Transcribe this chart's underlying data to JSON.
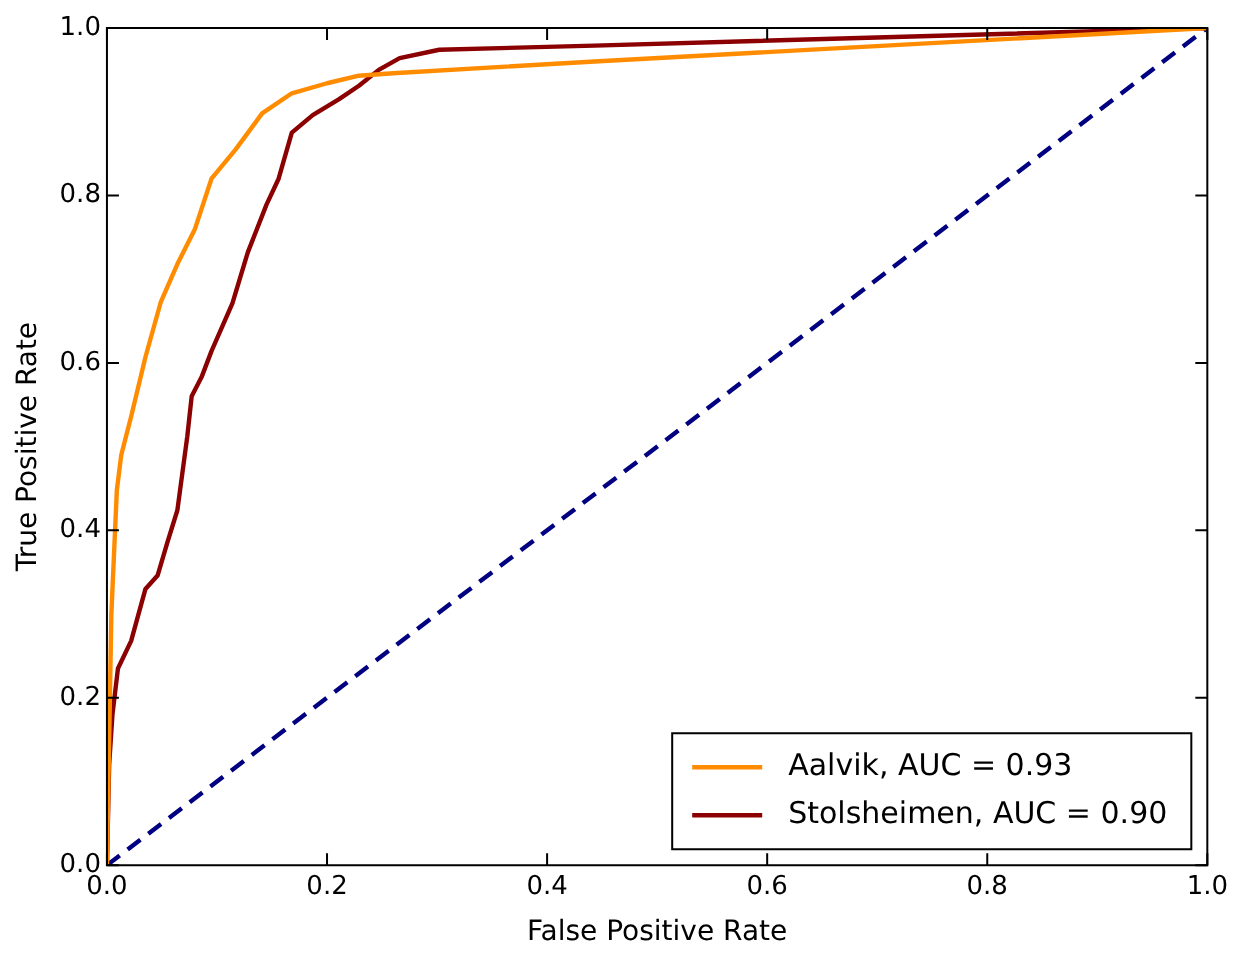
{
  "chart_data": {
    "type": "line",
    "xlabel": "False Positive Rate",
    "ylabel": "True Positive Rate",
    "xlim": [
      0,
      1
    ],
    "ylim": [
      0,
      1
    ],
    "xticks": [
      {
        "value": 0,
        "label": "0.0"
      },
      {
        "value": 0.2,
        "label": "0.2"
      },
      {
        "value": 0.4,
        "label": "0.4"
      },
      {
        "value": 0.6,
        "label": "0.6"
      },
      {
        "value": 0.8,
        "label": "0.8"
      },
      {
        "value": 1,
        "label": "1.0"
      }
    ],
    "yticks": [
      {
        "value": 0,
        "label": "0.0"
      },
      {
        "value": 0.2,
        "label": "0.2"
      },
      {
        "value": 0.4,
        "label": "0.4"
      },
      {
        "value": 0.6,
        "label": "0.6"
      },
      {
        "value": 0.8,
        "label": "0.8"
      },
      {
        "value": 1,
        "label": "1.0"
      }
    ],
    "grid": false,
    "legend": "bottom right",
    "marker": "none",
    "series": [
      {
        "name": "Aalvik, AUC = 0.93",
        "color": "#ff8c00",
        "line_style": "solid",
        "x": [
          0,
          0.004,
          0.009,
          0.013,
          0.022,
          0.035,
          0.049,
          0.064,
          0.08,
          0.095,
          0.117,
          0.141,
          0.168,
          0.2,
          0.229,
          0.26,
          0.443,
          1
        ],
        "values": [
          0,
          0.3,
          0.448,
          0.49,
          0.536,
          0.607,
          0.673,
          0.718,
          0.76,
          0.82,
          0.855,
          0.898,
          0.922,
          0.934,
          0.943,
          0.946,
          0.96,
          1
        ]
      },
      {
        "name": "Stolsheimen, AUC = 0.90",
        "color": "#8b0000",
        "line_style": "solid",
        "x": [
          0,
          0.002,
          0.005,
          0.01,
          0.022,
          0.035,
          0.046,
          0.055,
          0.064,
          0.073,
          0.077,
          0.086,
          0.095,
          0.114,
          0.128,
          0.145,
          0.156,
          0.168,
          0.187,
          0.211,
          0.229,
          0.247,
          0.266,
          0.302,
          0.443,
          1
        ],
        "values": [
          0,
          0.12,
          0.18,
          0.235,
          0.268,
          0.33,
          0.346,
          0.386,
          0.424,
          0.512,
          0.56,
          0.583,
          0.614,
          0.671,
          0.732,
          0.789,
          0.82,
          0.875,
          0.896,
          0.915,
          0.931,
          0.95,
          0.964,
          0.974,
          0.979,
          1
        ]
      },
      {
        "color": "#000080",
        "line_style": "dashed",
        "x": [
          0,
          1
        ],
        "values": [
          0,
          1
        ]
      }
    ]
  }
}
